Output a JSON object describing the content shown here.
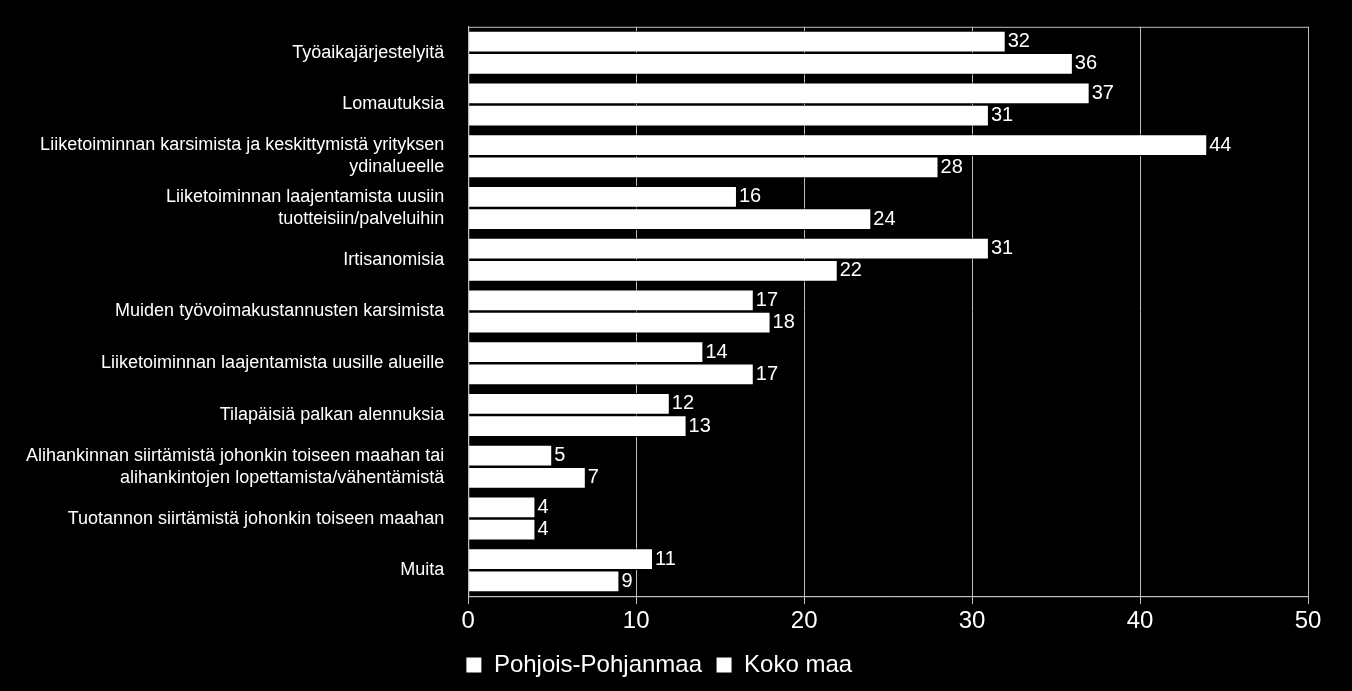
{
  "chart_data": {
    "type": "bar",
    "orientation": "horizontal",
    "categories": [
      "Työaikajärjestelyitä",
      "Lomautuksia",
      "Liiketoiminnan karsimista ja keskittymistä yrityksen ydinalueelle",
      "Liiketoiminnan laajentamista uusiin tuotteisiin/palveluihin",
      "Irtisanomisia",
      "Muiden työvoimakustannusten karsimista",
      "Liiketoiminnan laajentamista uusille alueille",
      "Tilapäisiä palkan alennuksia",
      "Alihankinnan siirtämistä johonkin toiseen maahan tai alihankintojen lopettamista/vähentämistä",
      "Tuotannon siirtämistä johonkin toiseen maahan",
      "Muita"
    ],
    "series": [
      {
        "name": "Pohjois-Pohjanmaa",
        "color": "#ffffff",
        "values": [
          32,
          37,
          44,
          16,
          31,
          17,
          14,
          12,
          5,
          4,
          11
        ]
      },
      {
        "name": "Koko maa",
        "color": "#ffffff",
        "values": [
          36,
          31,
          28,
          24,
          22,
          18,
          17,
          13,
          7,
          4,
          9
        ]
      }
    ],
    "xlim": [
      0,
      50
    ],
    "xticks": [
      0,
      10,
      20,
      30,
      40,
      50
    ],
    "grid": true,
    "legend": "bottom",
    "data_labels": true
  }
}
